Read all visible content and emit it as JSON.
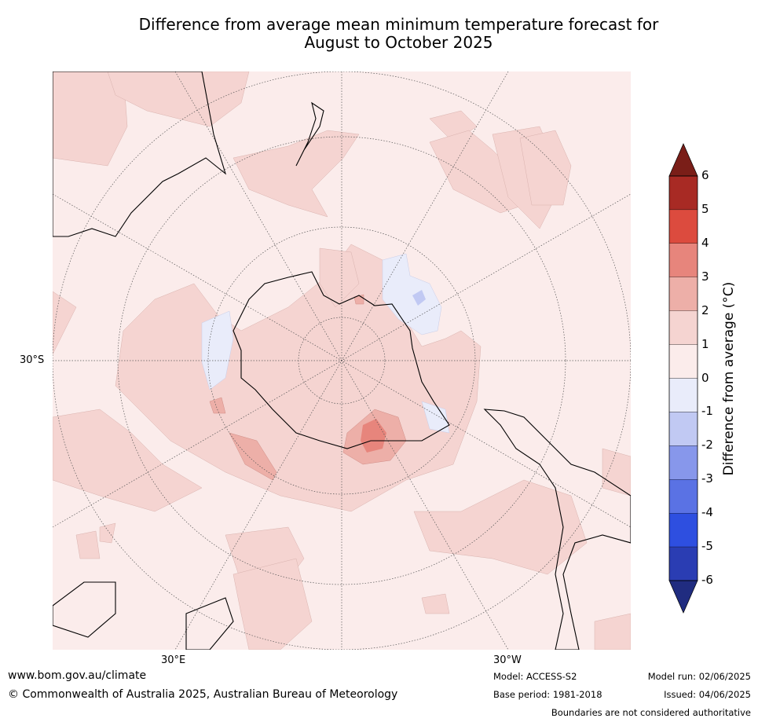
{
  "title": {
    "line1": "Difference from average mean minimum temperature forecast for",
    "line2": "August to October 2025"
  },
  "map": {
    "projection": "south-polar-stereographic",
    "lat_label": "30°S",
    "lon_labels": [
      "30°E",
      "30°W"
    ],
    "regions": [
      {
        "name": "Antarctic interior",
        "category": "0 to 1"
      },
      {
        "name": "Weddell Sea",
        "category": "1 to 2 / 2 to 3 / 3 to 4"
      },
      {
        "name": "Ross Sea",
        "category": "-1 to 0"
      },
      {
        "name": "Southern Ocean west of Antarctic Peninsula",
        "category": "-1 to 0"
      },
      {
        "name": "Southern Ocean south of Africa",
        "category": "1 to 2 / 2 to 3"
      }
    ]
  },
  "colorbar": {
    "label": "Difference from average ($^\\circ$C)",
    "label_display": "Difference from average (°C)",
    "ticks": [
      "6",
      "5",
      "4",
      "3",
      "2",
      "1",
      "0",
      "-1",
      "-2",
      "-3",
      "-4",
      "-5",
      "-6"
    ],
    "bins": [
      {
        "range": "5 to 6",
        "color": "#a82a24"
      },
      {
        "range": "4 to 5",
        "color": "#dc4b3e"
      },
      {
        "range": "3 to 4",
        "color": "#e7857c"
      },
      {
        "range": "2 to 3",
        "color": "#edafa8"
      },
      {
        "range": "1 to 2",
        "color": "#f5d4d1"
      },
      {
        "range": "0 to 1",
        "color": "#fbeceb"
      },
      {
        "range": "-1 to 0",
        "color": "#e9ecfa"
      },
      {
        "range": "-2 to -1",
        "color": "#c1c9f3"
      },
      {
        "range": "-3 to -2",
        "color": "#8797eb"
      },
      {
        "range": "-4 to -3",
        "color": "#5a72e4"
      },
      {
        "range": "-5 to -4",
        "color": "#2e4fe0"
      },
      {
        "range": "-6 to -5",
        "color": "#2a3db3"
      }
    ],
    "over_color": "#7a1e18",
    "under_color": "#202c80"
  },
  "footer": {
    "website": "www.bom.gov.au/climate",
    "copyright": "© Commonwealth of Australia 2025, Australian Bureau of Meteorology",
    "model": "Model: ACCESS-S2",
    "base_period": "Base period: 1981-2018",
    "model_run": "Model run: 02/06/2025",
    "issued": "Issued: 04/06/2025",
    "disclaimer": "Boundaries are not considered authoritative"
  }
}
